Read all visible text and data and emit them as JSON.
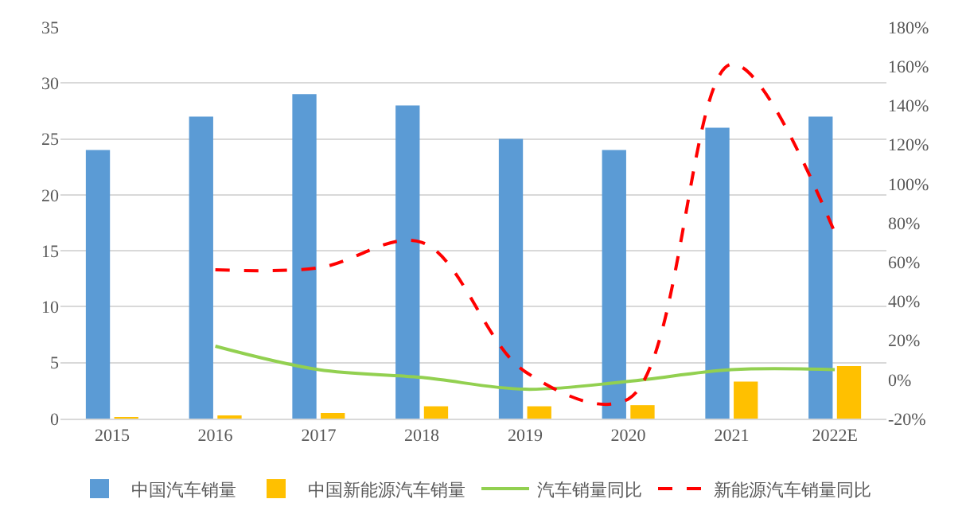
{
  "chart_data": {
    "type": "bar",
    "categories": [
      "2015",
      "2016",
      "2017",
      "2018",
      "2019",
      "2020",
      "2021",
      "2022E"
    ],
    "series": [
      {
        "name": "中国汽车销量",
        "color": "#5b9bd5",
        "values": [
          24,
          27,
          29,
          28,
          25,
          24,
          26,
          27
        ]
      },
      {
        "name": "中国新能源汽车销量",
        "color": "#ffc000",
        "values": [
          0.1,
          0.2,
          0.5,
          1.1,
          1.1,
          1.2,
          3.3,
          4.7
        ]
      },
      {
        "name": "汽车销量同比",
        "type": "line",
        "axis": "y2",
        "color": "#92d050",
        "line_style": "solid",
        "values": [
          null,
          17,
          5,
          1,
          -5,
          -1,
          5,
          5
        ]
      },
      {
        "name": "新能源汽车销量同比",
        "type": "line",
        "axis": "y2",
        "color": "#ff0000",
        "line_style": "dashed",
        "values": [
          null,
          56,
          57,
          70,
          4,
          -10,
          161,
          75
        ]
      }
    ],
    "ylim": [
      0,
      35
    ],
    "yticks": [
      0,
      5,
      10,
      15,
      20,
      25,
      30,
      35
    ],
    "y2lim": [
      -20,
      180
    ],
    "y2ticks": [
      {
        "value": -20,
        "label": "-20%"
      },
      {
        "value": 0,
        "label": "0%"
      },
      {
        "value": 20,
        "label": "20%"
      },
      {
        "value": 40,
        "label": "40%"
      },
      {
        "value": 60,
        "label": "60%"
      },
      {
        "value": 80,
        "label": "80%"
      },
      {
        "value": 100,
        "label": "100%"
      },
      {
        "value": 120,
        "label": "120%"
      },
      {
        "value": 140,
        "label": "140%"
      },
      {
        "value": 160,
        "label": "160%"
      },
      {
        "value": 180,
        "label": "180%"
      }
    ],
    "grid": "y",
    "legend": "bottom",
    "marker": "none"
  }
}
